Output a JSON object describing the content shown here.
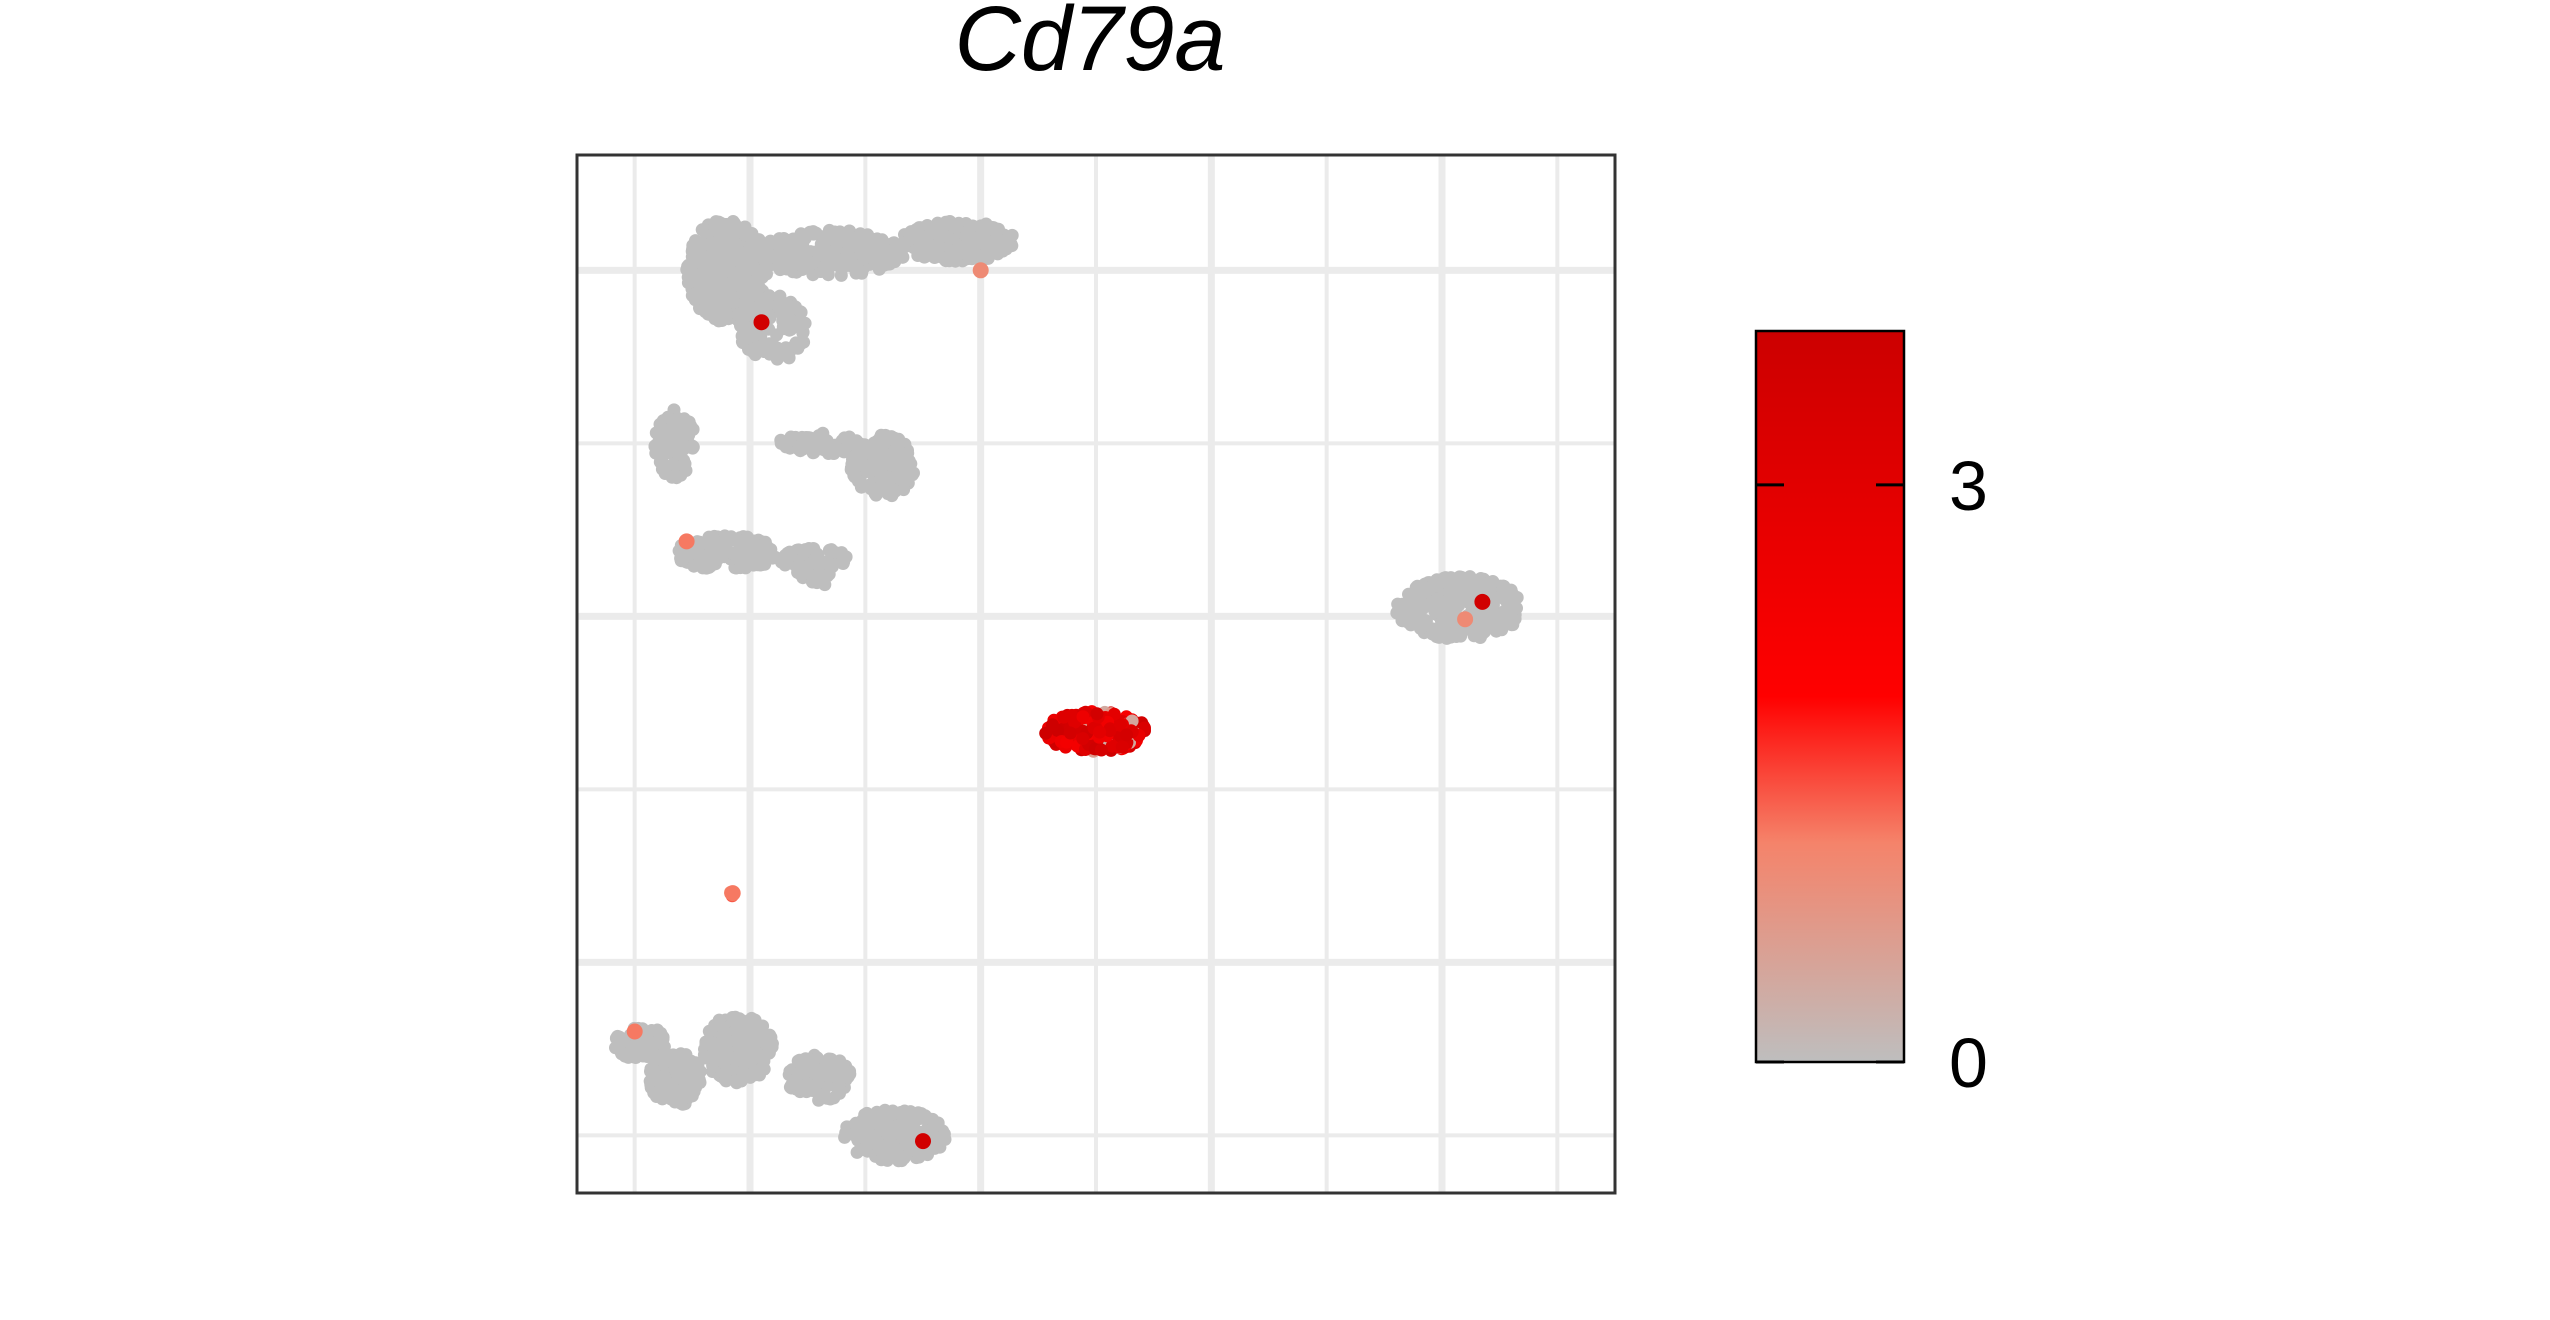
{
  "chart_data": {
    "type": "scatter",
    "title": "Cd79a",
    "xlabel": "",
    "ylabel": "",
    "grid": true,
    "axes_ticks_labels": false,
    "xlim": [
      -9,
      9
    ],
    "ylim": [
      -10,
      8
    ],
    "x_gridlines_major": [
      -6,
      -2,
      2,
      6
    ],
    "x_gridlines_minor": [
      -8,
      -4,
      0,
      4,
      8
    ],
    "y_gridlines_major": [
      6,
      0,
      -6
    ],
    "y_gridlines_minor": [
      3,
      -3,
      -9
    ],
    "colorbar": {
      "min": 0,
      "max": 3.8,
      "ticks": [
        0,
        3
      ],
      "tick_labels": [
        "0",
        "3"
      ],
      "colors": [
        "#BEBEBE",
        "#F5836A",
        "#FF0000",
        "#CC0000"
      ],
      "position": "right"
    },
    "clusters": [
      {
        "name": "",
        "shape": "top-left",
        "expression": "low",
        "blobs": [
          {
            "cx": -6.4,
            "cy": 6.0,
            "rx": 0.7,
            "ry": 0.9,
            "n": 380
          },
          {
            "cx": -4.6,
            "cy": 6.3,
            "rx": 1.3,
            "ry": 0.4,
            "n": 260
          },
          {
            "cx": -2.4,
            "cy": 6.5,
            "rx": 1.0,
            "ry": 0.35,
            "n": 240
          },
          {
            "cx": -5.6,
            "cy": 5.0,
            "rx": 0.6,
            "ry": 0.6,
            "n": 120
          },
          {
            "cx": -7.3,
            "cy": 3.0,
            "rx": 0.35,
            "ry": 0.6,
            "n": 90
          },
          {
            "cx": -3.7,
            "cy": 2.6,
            "rx": 0.55,
            "ry": 0.55,
            "n": 130
          },
          {
            "cx": -4.8,
            "cy": 3.0,
            "rx": 0.7,
            "ry": 0.2,
            "n": 70
          },
          {
            "cx": -6.4,
            "cy": 1.1,
            "rx": 0.9,
            "ry": 0.3,
            "n": 170
          },
          {
            "cx": -4.9,
            "cy": 1.0,
            "rx": 0.6,
            "ry": 0.2,
            "n": 60
          },
          {
            "cx": -4.9,
            "cy": 0.7,
            "rx": 0.3,
            "ry": 0.2,
            "n": 25
          }
        ],
        "highlights": [
          {
            "x": -5.8,
            "y": 5.1,
            "v": 3.6
          },
          {
            "x": -7.1,
            "y": 1.3,
            "v": 1.2
          },
          {
            "x": -2.0,
            "y": 6.0,
            "v": 1.0
          }
        ]
      },
      {
        "name": "",
        "shape": "right",
        "expression": "low",
        "blobs": [
          {
            "cx": 6.3,
            "cy": 0.15,
            "rx": 1.1,
            "ry": 0.55,
            "n": 260
          }
        ],
        "highlights": [
          {
            "x": 6.7,
            "y": 0.25,
            "v": 3.6
          },
          {
            "x": 6.4,
            "y": -0.05,
            "v": 1.0
          }
        ]
      },
      {
        "name": "",
        "shape": "center",
        "expression": "high",
        "blobs": [
          {
            "cx": 0.0,
            "cy": -2.0,
            "rx": 0.9,
            "ry": 0.35,
            "n": 240
          }
        ],
        "highlights": []
      },
      {
        "name": "",
        "shape": "small",
        "expression": "mid",
        "blobs": [
          {
            "cx": -6.3,
            "cy": -4.8,
            "rx": 0.05,
            "ry": 0.05,
            "n": 4
          }
        ],
        "highlights": [
          {
            "x": -6.3,
            "y": -4.8,
            "v": 1.2
          }
        ]
      },
      {
        "name": "",
        "shape": "bottom-left",
        "expression": "low",
        "blobs": [
          {
            "cx": -7.9,
            "cy": -7.4,
            "rx": 0.45,
            "ry": 0.3,
            "n": 90
          },
          {
            "cx": -7.3,
            "cy": -8.0,
            "rx": 0.45,
            "ry": 0.5,
            "n": 130
          },
          {
            "cx": -6.2,
            "cy": -7.5,
            "rx": 0.6,
            "ry": 0.6,
            "n": 200
          },
          {
            "cx": -4.8,
            "cy": -8.0,
            "rx": 0.55,
            "ry": 0.4,
            "n": 130
          },
          {
            "cx": -3.5,
            "cy": -9.0,
            "rx": 0.9,
            "ry": 0.45,
            "n": 190
          }
        ],
        "highlights": [
          {
            "x": -8.0,
            "y": -7.2,
            "v": 1.2
          },
          {
            "x": -3.0,
            "y": -9.1,
            "v": 3.6
          }
        ]
      }
    ]
  }
}
